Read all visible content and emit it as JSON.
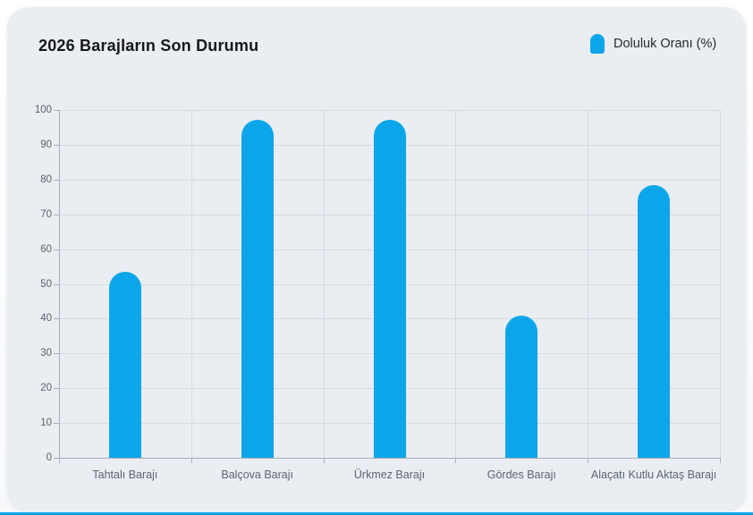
{
  "title": "2026 Barajların Son Durumu",
  "legend": {
    "label": "Doluluk Oranı (%)"
  },
  "colors": {
    "accent": "#0ba6ea",
    "card_bg": "#eaedf2",
    "grid": "#d6dbe2",
    "axis": "#a9afb8",
    "title_color": "#17171d",
    "tick_text": "#5c6168",
    "cat_text": "#5a6472"
  },
  "chart_data": {
    "type": "bar",
    "title": "2026 Barajların Son Durumu",
    "series_name": "Doluluk Oranı (%)",
    "categories": [
      "Tahtalı Barajı",
      "Balçova Barajı",
      "Ürkmez Barajı",
      "Gördes Barajı",
      "Alaçatı Kutlu Aktaş Barajı"
    ],
    "values": [
      53.5,
      97.2,
      97.3,
      41,
      78.5
    ],
    "xlabel": "",
    "ylabel": "",
    "ylim": [
      0,
      100
    ],
    "ytick_step": 10,
    "grid": true,
    "legend_position": "top-right",
    "bar_color": "#0ba6ea"
  }
}
